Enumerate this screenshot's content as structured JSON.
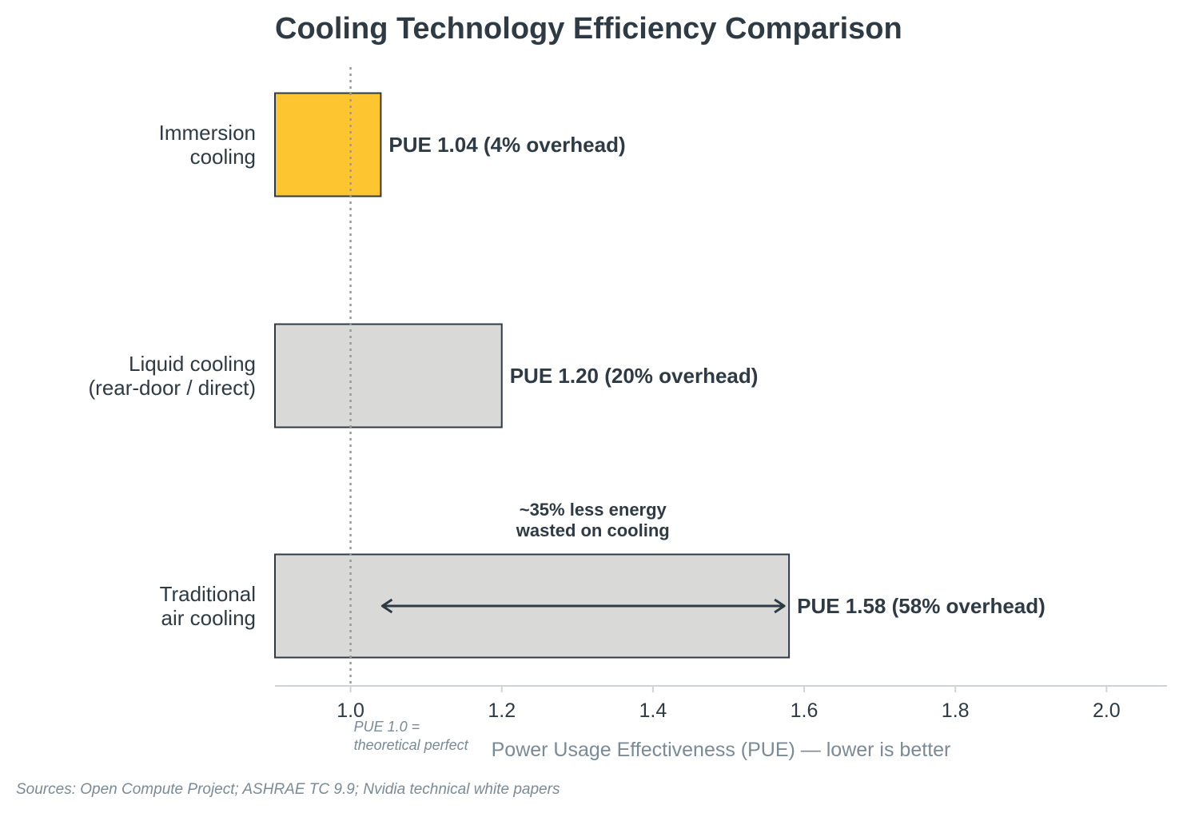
{
  "chart_data": {
    "type": "bar",
    "orientation": "horizontal",
    "title": "Cooling Technology Efficiency Comparison",
    "xlabel": "Power Usage Effectiveness (PUE) — lower is better",
    "ylabel": "",
    "xlim": [
      0.9,
      2.08
    ],
    "xticks": [
      1.0,
      1.2,
      1.4,
      1.6,
      1.8,
      2.0
    ],
    "xtick_labels": [
      "1.0",
      "1.2",
      "1.4",
      "1.6",
      "1.8",
      "2.0"
    ],
    "grid": false,
    "categories": [
      {
        "lines": [
          "Immersion",
          "cooling"
        ]
      },
      {
        "lines": [
          "Liquid cooling",
          "(rear-door / direct)"
        ]
      },
      {
        "lines": [
          "Traditional",
          "air cooling"
        ]
      }
    ],
    "values": [
      1.04,
      1.2,
      1.58
    ],
    "value_labels": [
      "PUE 1.04  (4% overhead)",
      "PUE 1.20  (20% overhead)",
      "PUE 1.58  (58% overhead)"
    ],
    "bar_colors": [
      "#fdc52f",
      "#d9dad8",
      "#d9dad8"
    ],
    "bar_edge_color": "#2e3a44",
    "reference_line": {
      "value": 1.0,
      "note_lines": [
        "PUE 1.0 =",
        "theoretical perfect"
      ],
      "color": "#999999"
    },
    "annotation": {
      "lines": [
        "~35% less energy",
        "wasted on cooling"
      ],
      "arrow_from": 1.04,
      "arrow_to": 1.58,
      "category_index": 2
    },
    "source": "Sources: Open Compute Project; ASHRAE TC 9.9; Nvidia technical white papers"
  }
}
